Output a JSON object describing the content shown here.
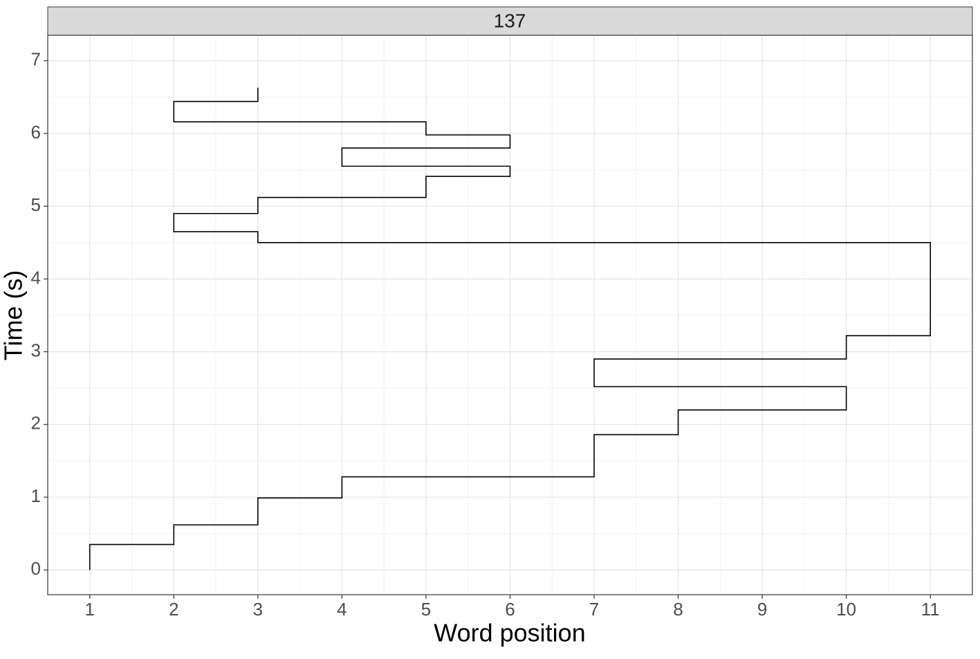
{
  "chart_data": {
    "type": "line",
    "strip_title": "137",
    "x_label": "Word position",
    "y_label": "Time (s)",
    "x": [
      1,
      1,
      2,
      2,
      3,
      3,
      4,
      4,
      7,
      7,
      8,
      8,
      10,
      10,
      7,
      7,
      10,
      10,
      11,
      11,
      3,
      3,
      2,
      2,
      3,
      3,
      5,
      5,
      6,
      6,
      4,
      4,
      6,
      6,
      5,
      5,
      2,
      2,
      3,
      3
    ],
    "series": [
      {
        "color": "#000000",
        "values": [
          0,
          0.35,
          0.35,
          0.62,
          0.62,
          0.99,
          0.99,
          1.28,
          1.28,
          1.86,
          1.86,
          2.2,
          2.2,
          2.52,
          2.52,
          2.9,
          2.9,
          3.22,
          3.22,
          4.5,
          4.5,
          4.65,
          4.65,
          4.9,
          4.9,
          5.12,
          5.12,
          5.41,
          5.41,
          5.55,
          5.55,
          5.8,
          5.8,
          5.98,
          5.98,
          6.16,
          6.16,
          6.44,
          6.44,
          6.63
        ]
      }
    ],
    "xlim": [
      0.5,
      11.5
    ],
    "ylim": [
      -0.34,
      7.35
    ],
    "xticks": [
      1,
      2,
      3,
      4,
      5,
      6,
      7,
      8,
      9,
      10,
      11
    ],
    "yticks": [
      0,
      1,
      2,
      3,
      4,
      5,
      6,
      7
    ],
    "grid": true
  }
}
